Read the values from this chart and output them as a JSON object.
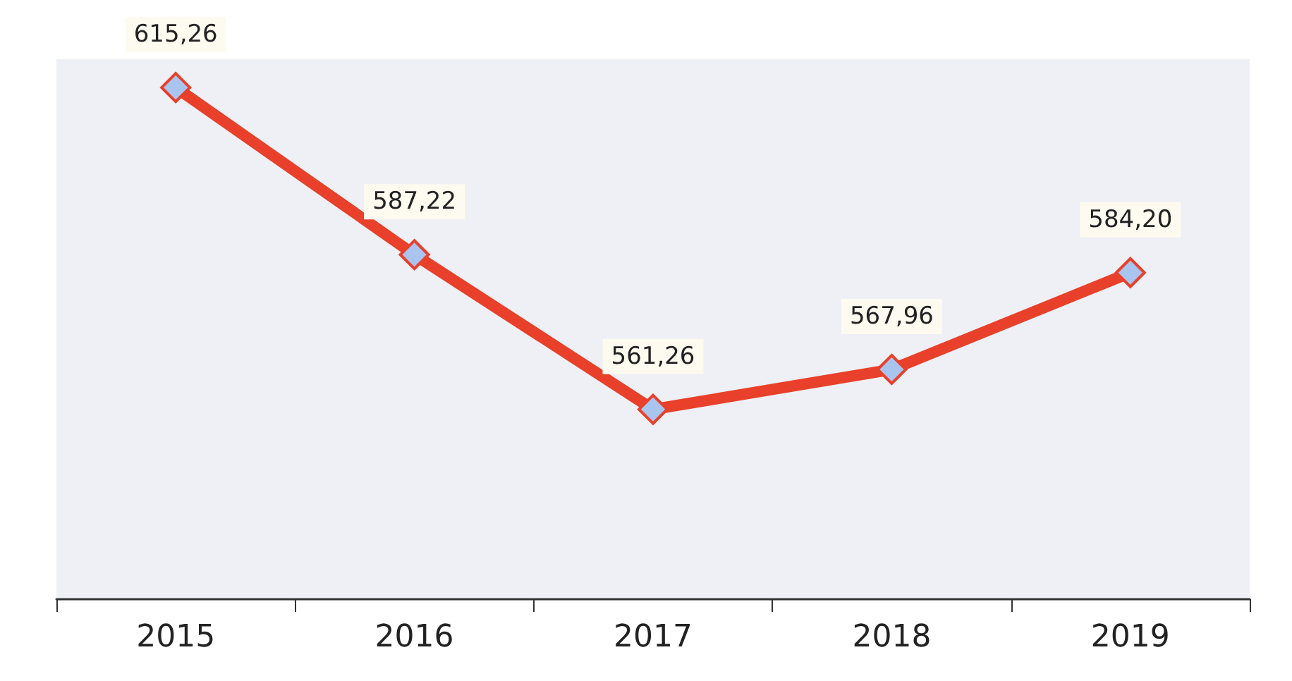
{
  "chart_data": {
    "type": "line",
    "categories": [
      "2015",
      "2016",
      "2017",
      "2018",
      "2019"
    ],
    "series": [
      {
        "color": "#e8402a",
        "values": [
          615.26,
          587.22,
          561.26,
          567.96,
          584.2
        ],
        "value_labels": [
          "615,26",
          "587,22",
          "561,26",
          "567,96",
          "584,20"
        ]
      }
    ],
    "marker": "diamond",
    "line_style": "solid"
  }
}
